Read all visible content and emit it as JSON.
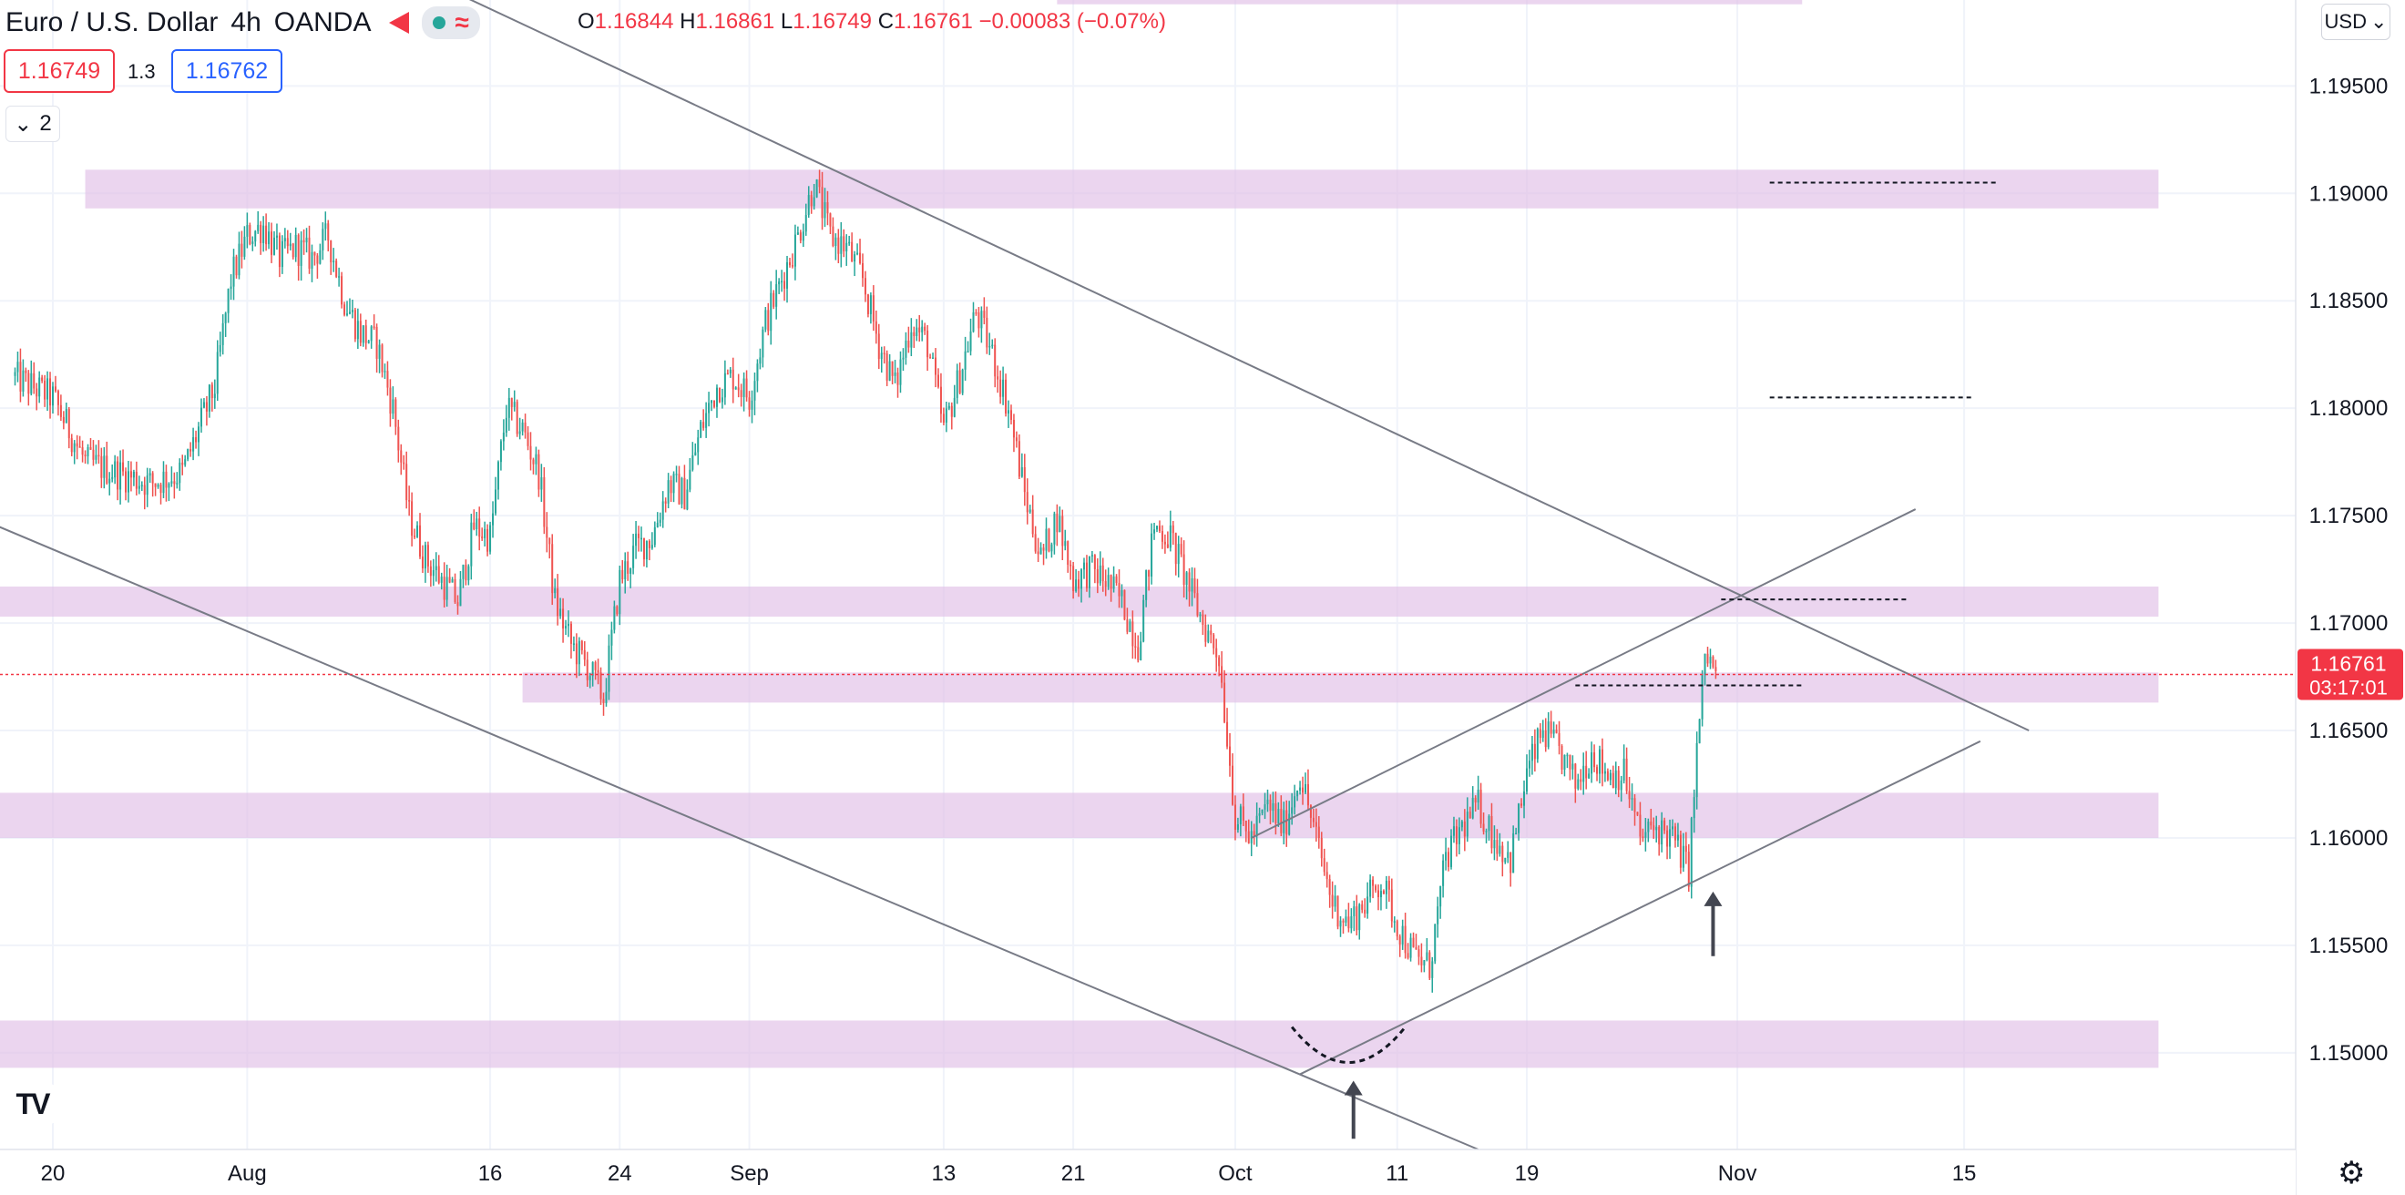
{
  "header": {
    "symbol": "Euro / U.S. Dollar",
    "interval": "4h",
    "exchange": "OANDA",
    "ohlc": {
      "o_label": "O",
      "o": "1.16844",
      "h_label": "H",
      "h": "1.16861",
      "l_label": "L",
      "l": "1.16749",
      "c_label": "C",
      "c": "1.16761",
      "change": "−0.00083 (−0.07%)"
    },
    "sell_price": "1.16749",
    "spread": "1.3",
    "buy_price": "1.16762",
    "collapse_count": "2",
    "currency": "USD"
  },
  "chart_data": {
    "type": "candlestick",
    "symbol": "Euro / U.S. Dollar",
    "interval": "4h",
    "ylim": [
      1.1455,
      1.199
    ],
    "y_ticks": [
      "1.19500",
      "1.19000",
      "1.18500",
      "1.18000",
      "1.17500",
      "1.17000",
      "1.16500",
      "1.16000",
      "1.15500",
      "1.15000"
    ],
    "y_tick_values": [
      1.195,
      1.19,
      1.185,
      1.18,
      1.175,
      1.17,
      1.165,
      1.16,
      1.155,
      1.15
    ],
    "x_ticks": [
      {
        "label": "20",
        "day": 0
      },
      {
        "label": "Aug",
        "day": 12
      },
      {
        "label": "16",
        "day": 27
      },
      {
        "label": "24",
        "day": 35
      },
      {
        "label": "Sep",
        "day": 43
      },
      {
        "label": "13",
        "day": 55
      },
      {
        "label": "21",
        "day": 63
      },
      {
        "label": "Oct",
        "day": 73
      },
      {
        "label": "11",
        "day": 83
      },
      {
        "label": "19",
        "day": 91
      },
      {
        "label": "Nov",
        "day": 104
      },
      {
        "label": "15",
        "day": 118
      }
    ],
    "close_path": [
      [
        -2.5,
        1.1815
      ],
      [
        0,
        1.1805
      ],
      [
        2,
        1.1775
      ],
      [
        4,
        1.177
      ],
      [
        6,
        1.1765
      ],
      [
        8,
        1.177
      ],
      [
        10,
        1.181
      ],
      [
        11,
        1.186
      ],
      [
        12,
        1.188
      ],
      [
        13,
        1.1885
      ],
      [
        14,
        1.187
      ],
      [
        15,
        1.1875
      ],
      [
        16,
        1.187
      ],
      [
        17,
        1.188
      ],
      [
        18,
        1.185
      ],
      [
        19,
        1.1835
      ],
      [
        20,
        1.183
      ],
      [
        21,
        1.18
      ],
      [
        22,
        1.175
      ],
      [
        23,
        1.173
      ],
      [
        24,
        1.172
      ],
      [
        25,
        1.171
      ],
      [
        26,
        1.1745
      ],
      [
        27,
        1.174
      ],
      [
        28,
        1.18
      ],
      [
        29,
        1.179
      ],
      [
        30,
        1.177
      ],
      [
        31,
        1.171
      ],
      [
        32,
        1.169
      ],
      [
        33,
        1.168
      ],
      [
        34,
        1.1665
      ],
      [
        35,
        1.172
      ],
      [
        36,
        1.1735
      ],
      [
        37,
        1.174
      ],
      [
        38,
        1.1765
      ],
      [
        39,
        1.176
      ],
      [
        40,
        1.179
      ],
      [
        41,
        1.181
      ],
      [
        42,
        1.1815
      ],
      [
        43,
        1.1805
      ],
      [
        44,
        1.184
      ],
      [
        45,
        1.186
      ],
      [
        46,
        1.188
      ],
      [
        47,
        1.1905
      ],
      [
        48,
        1.188
      ],
      [
        49,
        1.1875
      ],
      [
        50,
        1.186
      ],
      [
        51,
        1.183
      ],
      [
        52,
        1.181
      ],
      [
        53,
        1.184
      ],
      [
        54,
        1.183
      ],
      [
        55,
        1.179
      ],
      [
        56,
        1.1815
      ],
      [
        57,
        1.1845
      ],
      [
        58,
        1.1825
      ],
      [
        59,
        1.18
      ],
      [
        60,
        1.176
      ],
      [
        61,
        1.173
      ],
      [
        62,
        1.175
      ],
      [
        63,
        1.172
      ],
      [
        64,
        1.1725
      ],
      [
        65,
        1.172
      ],
      [
        66,
        1.171
      ],
      [
        67,
        1.169
      ],
      [
        68,
        1.1745
      ],
      [
        69,
        1.174
      ],
      [
        70,
        1.172
      ],
      [
        71,
        1.17
      ],
      [
        72,
        1.1685
      ],
      [
        73,
        1.161
      ],
      [
        74,
        1.16
      ],
      [
        75,
        1.1615
      ],
      [
        76,
        1.1605
      ],
      [
        77,
        1.163
      ],
      [
        78,
        1.16
      ],
      [
        79,
        1.157
      ],
      [
        80,
        1.156
      ],
      [
        81,
        1.157
      ],
      [
        82,
        1.158
      ],
      [
        83,
        1.156
      ],
      [
        84,
        1.1545
      ],
      [
        85,
        1.154
      ],
      [
        86,
        1.159
      ],
      [
        87,
        1.1605
      ],
      [
        88,
        1.1615
      ],
      [
        89,
        1.16
      ],
      [
        90,
        1.159
      ],
      [
        91,
        1.163
      ],
      [
        92,
        1.165
      ],
      [
        93,
        1.164
      ],
      [
        94,
        1.1625
      ],
      [
        95,
        1.164
      ],
      [
        96,
        1.163
      ],
      [
        97,
        1.163
      ],
      [
        98,
        1.16
      ],
      [
        99,
        1.1605
      ],
      [
        100,
        1.16
      ],
      [
        101,
        1.1585
      ],
      [
        101.5,
        1.164
      ],
      [
        102,
        1.1685
      ],
      [
        102.8,
        1.16761
      ]
    ],
    "current_price": "1.16761",
    "countdown": "03:17:01",
    "zones": [
      {
        "y1": 1.1893,
        "y2": 1.1911,
        "day_from": 2,
        "day_to": 130
      },
      {
        "y1": 1.1703,
        "y2": 1.1717,
        "day_from": -4,
        "day_to": 130
      },
      {
        "y1": 1.1663,
        "y2": 1.1677,
        "day_from": 29,
        "day_to": 130
      },
      {
        "y1": 1.16,
        "y2": 1.1621,
        "day_from": -4,
        "day_to": 130
      },
      {
        "y1": 1.1493,
        "y2": 1.1515,
        "day_from": -4,
        "day_to": 130
      },
      {
        "y1": 1.1988,
        "y2": 1.201,
        "day_from": 62,
        "day_to": 108
      }
    ],
    "trendlines": [
      {
        "d1": 23,
        "p1": 1.2,
        "d2": 122,
        "p2": 1.165
      },
      {
        "d1": -4,
        "p1": 1.1747,
        "d2": 88,
        "p2": 1.1455
      },
      {
        "d1": 77,
        "p1": 1.149,
        "d2": 119,
        "p2": 1.1645
      },
      {
        "d1": 74,
        "p1": 1.16,
        "d2": 115,
        "p2": 1.1753
      }
    ],
    "dotted_levels": [
      {
        "price": 1.1905,
        "d1": 106,
        "d2": 120
      },
      {
        "price": 1.1805,
        "d1": 106,
        "d2": 118.5
      },
      {
        "price": 1.1711,
        "d1": 103,
        "d2": 114.5
      },
      {
        "price": 1.1671,
        "d1": 94,
        "d2": 108
      }
    ]
  }
}
